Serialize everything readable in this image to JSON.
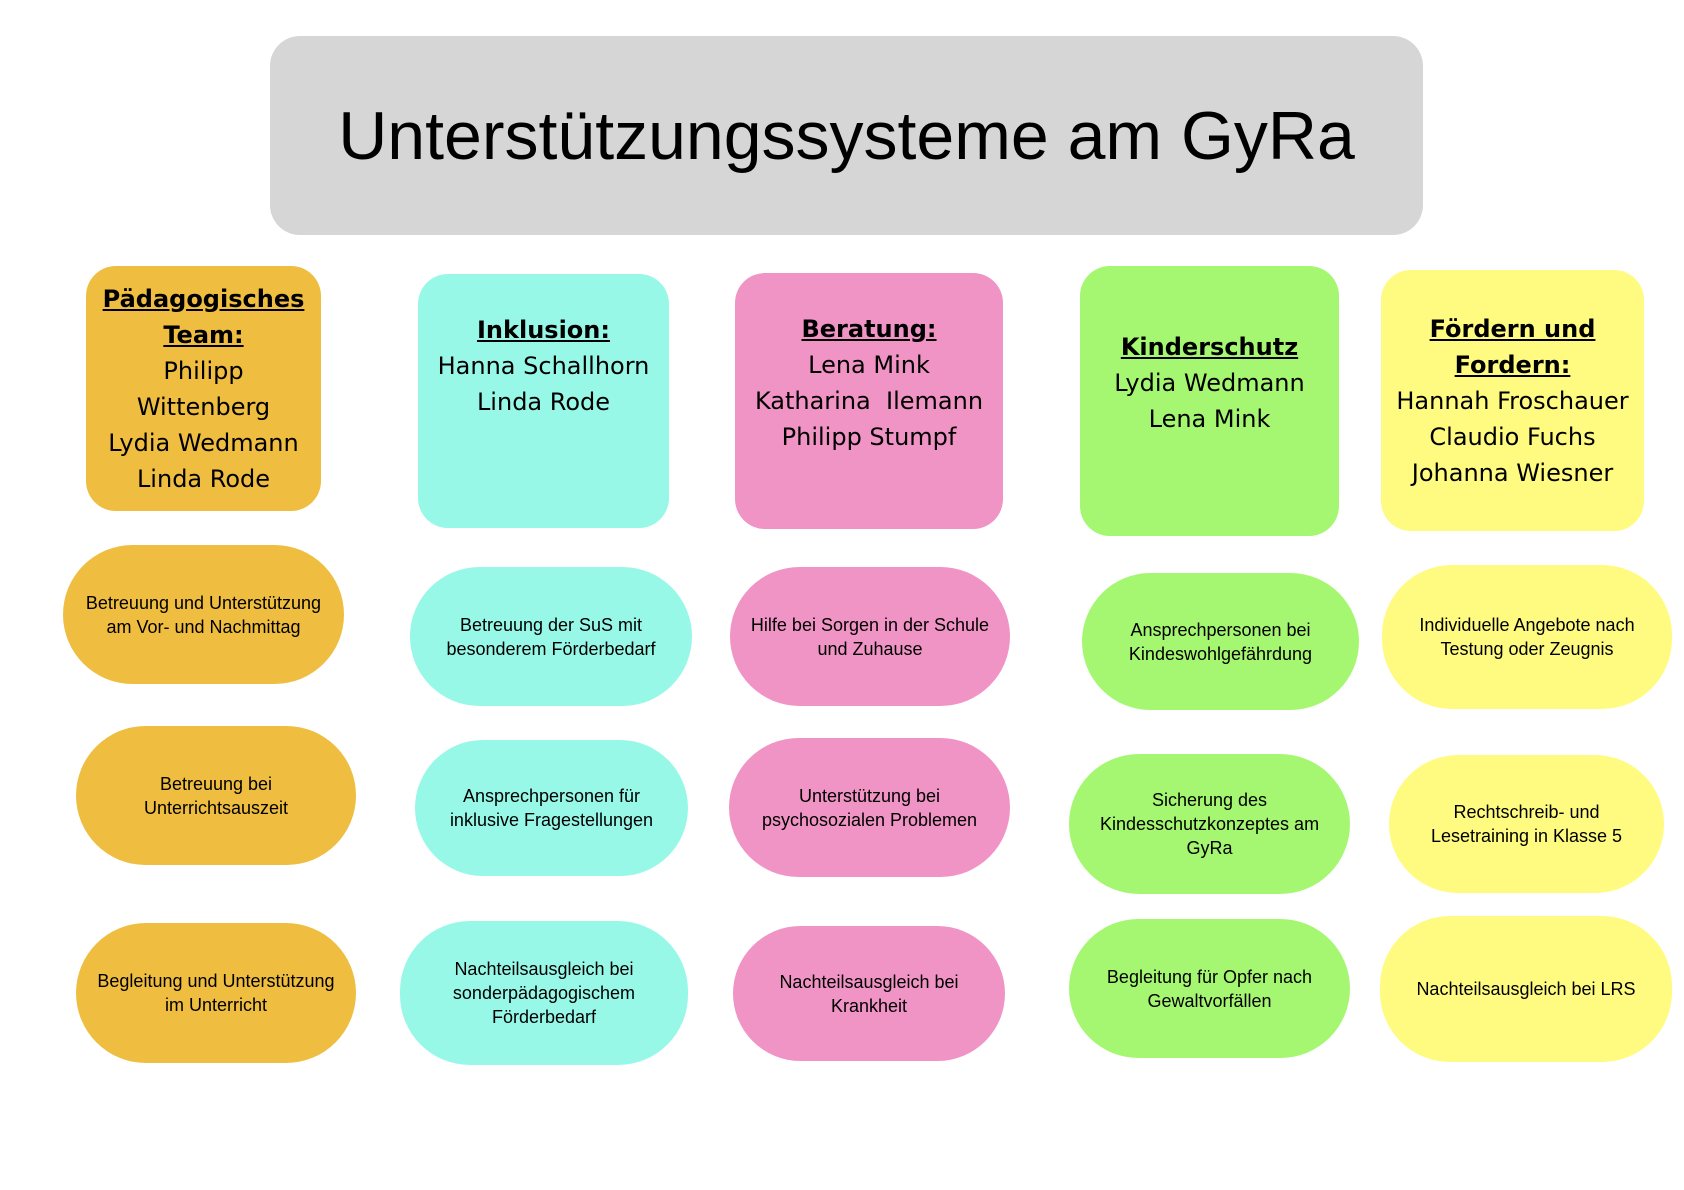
{
  "title": "Unterstützungssysteme am GyRa",
  "colors": {
    "title_bg": "#d6d6d6",
    "paedagogisch": "#efbd40",
    "inklusion": "#98f8e8",
    "beratung": "#f093c5",
    "kinderschutz": "#a5f771",
    "foerdern": "#fefb80"
  },
  "columns": [
    {
      "id": "paedagogisches-team",
      "heading": [
        "Pädagogisches",
        "Team:"
      ],
      "names": [
        "Philipp",
        "Wittenberg",
        "Lydia Wedmann",
        "Linda Rode"
      ],
      "items": [
        "Betreuung und Unterstützung am Vor- und Nachmittag",
        "Betreuung bei Unterrichtsauszeit",
        "Begleitung und Unterstützung im Unterricht"
      ]
    },
    {
      "id": "inklusion",
      "heading": [
        "Inklusion:"
      ],
      "names": [
        "Hanna Schallhorn",
        "Linda Rode"
      ],
      "items": [
        "Betreuung der SuS mit besonderem Förderbedarf",
        "Ansprechpersonen für inklusive Fragestellungen",
        "Nachteilsausgleich bei sonderpädagogischem Förderbedarf"
      ]
    },
    {
      "id": "beratung",
      "heading": [
        "Beratung:"
      ],
      "names": [
        "Lena Mink",
        "Katharina  Ilemann",
        "Philipp Stumpf"
      ],
      "items": [
        "Hilfe bei Sorgen in der Schule und Zuhause",
        "Unterstützung bei psychosozialen Problemen",
        "Nachteilsausgleich bei Krankheit"
      ]
    },
    {
      "id": "kinderschutz",
      "heading": [
        "Kinderschutz"
      ],
      "names": [
        "Lydia Wedmann",
        "Lena Mink"
      ],
      "items": [
        "Ansprechpersonen bei Kindeswohlgefährdung",
        "Sicherung des Kindesschutzkonzeptes am GyRa",
        "Begleitung für Opfer nach Gewaltvorfällen"
      ]
    },
    {
      "id": "foerdern-und-fordern",
      "heading": [
        "Fördern und",
        "Fordern:"
      ],
      "names": [
        "Hannah Froschauer",
        "Claudio Fuchs",
        "Johanna Wiesner"
      ],
      "items": [
        "Individuelle Angebote nach Testung oder Zeugnis",
        "Rechtschreib- und Lesetraining in Klasse 5",
        "Nachteilsausgleich bei LRS"
      ]
    }
  ]
}
